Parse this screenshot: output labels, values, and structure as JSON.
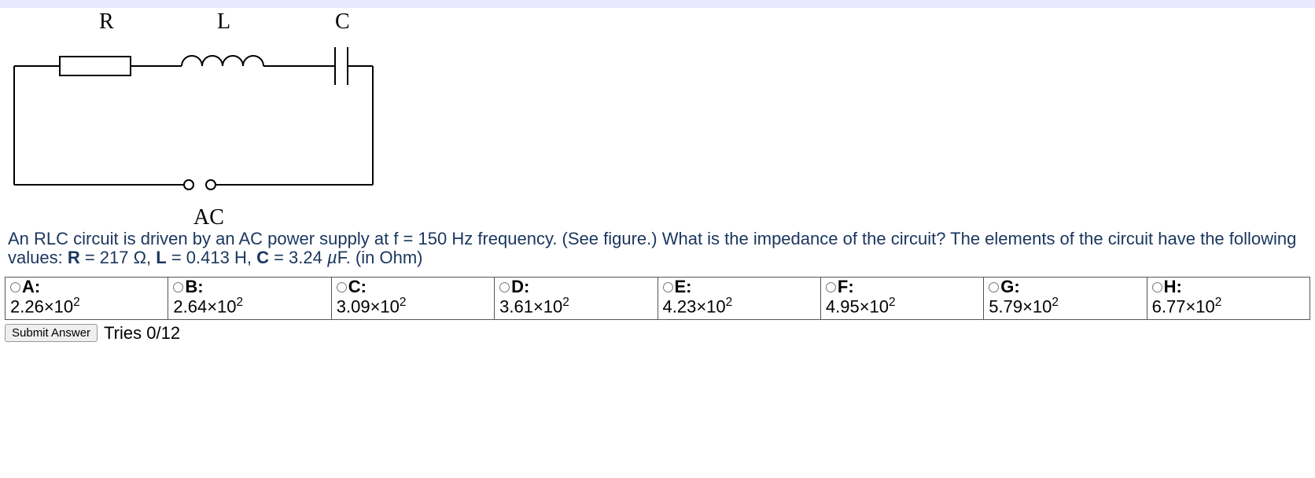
{
  "circuit": {
    "labels": {
      "R": "R",
      "L": "L",
      "C": "C",
      "source": "AC"
    },
    "label_font": {
      "family": "Times New Roman, serif",
      "size": 26,
      "weight": "normal"
    },
    "stroke": "#000000",
    "stroke_width": 2
  },
  "question": {
    "color": "#1a365d",
    "text_parts": {
      "part1": "An RLC circuit is driven by an AC power supply at f = 150 Hz frequency. (See figure.) What is the impedance of the circuit? The elements of the circuit have the following values: ",
      "R_label": "R",
      "R_val": " = 217 Ω, ",
      "L_label": "L",
      "L_val": " = 0.413 H, ",
      "C_label": "C",
      "C_val": " = 3.24 ",
      "mu": "µ",
      "unit_tail": "F. (in Ohm)"
    }
  },
  "options": [
    {
      "letter": "A:",
      "mantissa": "2.26",
      "exp": "2"
    },
    {
      "letter": "B:",
      "mantissa": "2.64",
      "exp": "2"
    },
    {
      "letter": "C:",
      "mantissa": "3.09",
      "exp": "2"
    },
    {
      "letter": "D:",
      "mantissa": "3.61",
      "exp": "2"
    },
    {
      "letter": "E:",
      "mantissa": "4.23",
      "exp": "2"
    },
    {
      "letter": "F:",
      "mantissa": "4.95",
      "exp": "2"
    },
    {
      "letter": "G:",
      "mantissa": "5.79",
      "exp": "2"
    },
    {
      "letter": "H:",
      "mantissa": "6.77",
      "exp": "2"
    }
  ],
  "submit": {
    "button_label": "Submit Answer",
    "tries_text": "Tries 0/12"
  },
  "value_format": {
    "times_symbol": "×",
    "base": "10"
  }
}
